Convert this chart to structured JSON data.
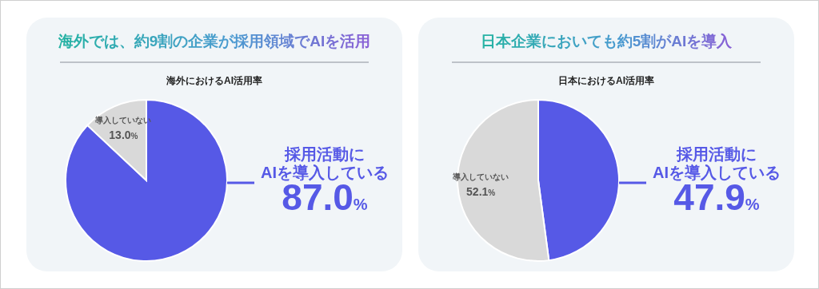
{
  "chart_data": [
    {
      "type": "pie",
      "title": "海外では、約9割の企業が採用領域でAIを活用",
      "subtitle": "海外におけるAI活用率",
      "categories": [
        "採用活動に\nAIを導入している",
        "導入していない"
      ],
      "values": [
        87.0,
        13.0
      ],
      "colors": [
        "#5659e6",
        "#d9d9d9"
      ],
      "value_labels": [
        "87.0%",
        "13.0%"
      ]
    },
    {
      "type": "pie",
      "title": "日本企業においても約5割がAIを導入",
      "subtitle": "日本におけるAI活用率",
      "categories": [
        "採用活動に\nAIを導入している",
        "導入していない"
      ],
      "values": [
        47.9,
        52.1
      ],
      "colors": [
        "#5659e6",
        "#d9d9d9"
      ],
      "value_labels": [
        "47.9%",
        "52.1%"
      ]
    }
  ]
}
